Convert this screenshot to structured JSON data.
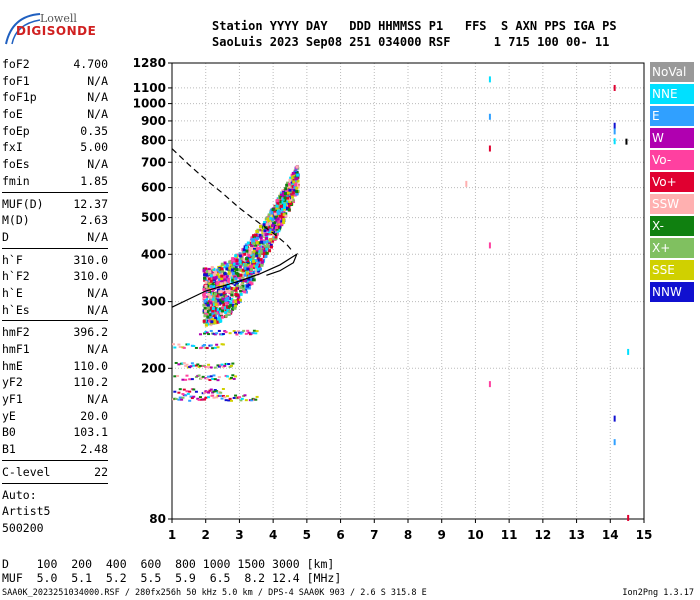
{
  "logo": {
    "line1": "Lowell",
    "line2": "DIGISONDE"
  },
  "header": {
    "line1": "Station YYYY DAY   DDD HHMMSS P1   FFS  S AXN PPS IGA PS",
    "line2": "SaoLuis 2023 Sep08 251 034000 RSF      1 715 100 00- 11"
  },
  "params": [
    {
      "label": "foF2",
      "value": "4.700"
    },
    {
      "label": "foF1",
      "value": "N/A"
    },
    {
      "label": "foF1p",
      "value": "N/A"
    },
    {
      "label": "foE",
      "value": "N/A"
    },
    {
      "label": "foEp",
      "value": "0.35"
    },
    {
      "label": "fxI",
      "value": "5.00"
    },
    {
      "label": "foEs",
      "value": "N/A"
    },
    {
      "label": "fmin",
      "value": "1.85"
    },
    {
      "sep": true
    },
    {
      "label": "MUF(D)",
      "value": "12.37"
    },
    {
      "label": "M(D)",
      "value": "2.63"
    },
    {
      "label": "D",
      "value": "N/A"
    },
    {
      "sep": true
    },
    {
      "label": "h`F",
      "value": "310.0"
    },
    {
      "label": "h`F2",
      "value": "310.0"
    },
    {
      "label": "h`E",
      "value": "N/A"
    },
    {
      "label": "h`Es",
      "value": "N/A"
    },
    {
      "sep": true
    },
    {
      "label": "hmF2",
      "value": "396.2"
    },
    {
      "label": "hmF1",
      "value": "N/A"
    },
    {
      "label": "hmE",
      "value": "110.0"
    },
    {
      "label": "yF2",
      "value": "110.2"
    },
    {
      "label": "yF1",
      "value": "N/A"
    },
    {
      "label": "yE",
      "value": "20.0"
    },
    {
      "label": "B0",
      "value": "103.1"
    },
    {
      "label": "B1",
      "value": "2.48"
    },
    {
      "sep": true
    },
    {
      "label": "C-level",
      "value": "22"
    },
    {
      "sep": true
    },
    {
      "label": "Auto:",
      "value": ""
    },
    {
      "label": "Artist5",
      "value": ""
    },
    {
      "label": "500200",
      "value": ""
    }
  ],
  "legend": [
    {
      "label": "NoVal",
      "color": "#999999"
    },
    {
      "label": "NNE",
      "color": "#00e0ff"
    },
    {
      "label": "E",
      "color": "#30a0ff"
    },
    {
      "label": "W",
      "color": "#b000b0"
    },
    {
      "label": "Vo-",
      "color": "#ff40a0"
    },
    {
      "label": "Vo+",
      "color": "#e00030"
    },
    {
      "label": "SSW",
      "color": "#ffb0b0"
    },
    {
      "label": "X-",
      "color": "#108010"
    },
    {
      "label": "X+",
      "color": "#80c060"
    },
    {
      "label": "SSE",
      "color": "#d0d000"
    },
    {
      "label": "NNW",
      "color": "#1010d0"
    }
  ],
  "distance_table": {
    "line1": "D    100  200  400  600  800 1000 1500 3000 [km]",
    "line2": "MUF  5.0  5.1  5.2  5.5  5.9  6.5  8.2 12.4 [MHz]"
  },
  "footer": {
    "left": "SAA0K_2023251034000.RSF / 280fx256h 50 kHz 5.0 km / DPS-4 SAA0K 903 / 2.6 S 315.8 E",
    "right": "Ion2Png 1.3.17"
  },
  "chart_data": {
    "type": "scatter",
    "title": "",
    "xlabel": "",
    "ylabel": "",
    "xlim": [
      1,
      15
    ],
    "ylim": [
      80,
      1280
    ],
    "y_scale": "log",
    "grid": "dotted",
    "x_ticks": [
      1,
      2,
      3,
      4,
      5,
      6,
      7,
      8,
      9,
      10,
      11,
      12,
      13,
      14,
      15
    ],
    "y_ticks": [
      80,
      200,
      300,
      400,
      500,
      600,
      700,
      800,
      900,
      1000,
      1100,
      1280
    ],
    "legend_placement": "right",
    "virtual_height_curve_solid": [
      [
        1.0,
        290
      ],
      [
        2.0,
        320
      ],
      [
        3.0,
        340
      ],
      [
        3.6,
        355
      ],
      [
        4.2,
        375
      ],
      [
        4.6,
        395
      ],
      [
        4.7,
        400
      ],
      [
        4.6,
        380
      ],
      [
        4.2,
        362
      ],
      [
        3.8,
        352
      ]
    ],
    "virtual_height_curve_dashed": [
      [
        1.0,
        760
      ],
      [
        1.5,
        690
      ],
      [
        2.0,
        630
      ],
      [
        2.5,
        580
      ],
      [
        3.0,
        530
      ],
      [
        3.5,
        490
      ],
      [
        4.0,
        455
      ],
      [
        4.4,
        425
      ],
      [
        4.6,
        405
      ]
    ],
    "isolated_points": [
      {
        "x": 10.4,
        "y": 1180,
        "color": "#00e0ff"
      },
      {
        "x": 10.4,
        "y": 940,
        "color": "#30a0ff"
      },
      {
        "x": 10.4,
        "y": 775,
        "color": "#e00030"
      },
      {
        "x": 10.4,
        "y": 430,
        "color": "#ff40a0"
      },
      {
        "x": 10.4,
        "y": 185,
        "color": "#ff40a0"
      },
      {
        "x": 9.7,
        "y": 625,
        "color": "#ffb0b0"
      },
      {
        "x": 14.1,
        "y": 1120,
        "color": "#e00030"
      },
      {
        "x": 14.1,
        "y": 890,
        "color": "#1010d0"
      },
      {
        "x": 14.1,
        "y": 860,
        "color": "#30a0ff"
      },
      {
        "x": 14.1,
        "y": 810,
        "color": "#00e0ff"
      },
      {
        "x": 14.45,
        "y": 808,
        "color": "#000000"
      },
      {
        "x": 14.5,
        "y": 225,
        "color": "#00e0ff"
      },
      {
        "x": 14.1,
        "y": 150,
        "color": "#1010d0"
      },
      {
        "x": 14.1,
        "y": 130,
        "color": "#30a0ff"
      },
      {
        "x": 14.5,
        "y": 82,
        "color": "#e00030"
      }
    ]
  }
}
